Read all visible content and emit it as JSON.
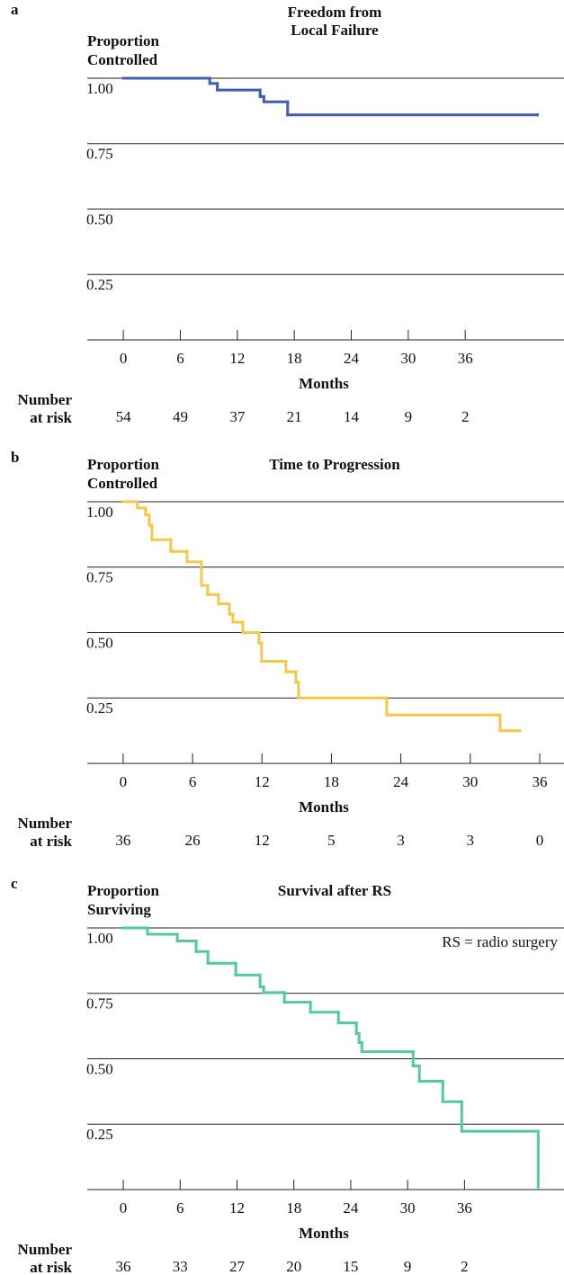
{
  "chart_data": [
    {
      "type": "line",
      "step": "post",
      "panel_label": "a",
      "title": [
        "Freedom from",
        "Local Failure"
      ],
      "y_label": [
        "Proportion",
        "Controlled"
      ],
      "x_label": "Months",
      "x": [
        0,
        9.1,
        9.9,
        14.4,
        14.8,
        17.3,
        43.6
      ],
      "series": [
        {
          "color": "#3f5fae",
          "values": [
            1.0,
            0.98,
            0.955,
            0.93,
            0.91,
            0.86,
            0.86
          ]
        }
      ],
      "xlim": [
        -3.8,
        46.4
      ],
      "ylim": [
        0,
        1.0
      ],
      "xticks": [
        0,
        6,
        12,
        18,
        24,
        30,
        36
      ],
      "yticks": [
        {
          "value": 0.25,
          "label": "0.25"
        },
        {
          "value": 0.5,
          "label": "0.50"
        },
        {
          "value": 0.75,
          "label": "0.75"
        },
        {
          "value": 1.0,
          "label": "1.00"
        }
      ],
      "grid": true,
      "at_risk_label": [
        "Number",
        "at risk"
      ],
      "at_risk": [
        54,
        49,
        37,
        21,
        14,
        9,
        2
      ]
    },
    {
      "type": "line",
      "step": "post",
      "panel_label": "b",
      "title": [
        "Time to Progression"
      ],
      "y_label": [
        "Proportion",
        "Controlled"
      ],
      "x_label": "Months",
      "x": [
        0,
        1.24,
        1.94,
        2.26,
        2.49,
        4.12,
        5.52,
        6.77,
        7.31,
        8.24,
        9.18,
        9.49,
        10.34,
        11.74,
        11.97,
        14.07,
        14.93,
        15.16,
        22.78,
        32.58,
        34.29
      ],
      "series": [
        {
          "color": "#f4c84a",
          "values": [
            1.0,
            0.976,
            0.95,
            0.91,
            0.855,
            0.81,
            0.77,
            0.68,
            0.645,
            0.61,
            0.57,
            0.54,
            0.5,
            0.46,
            0.39,
            0.35,
            0.31,
            0.25,
            0.185,
            0.125,
            0.125
          ]
        }
      ],
      "xlim": [
        -3.1,
        38.1
      ],
      "ylim": [
        0,
        1.0
      ],
      "xticks": [
        0,
        6,
        12,
        18,
        24,
        30,
        36
      ],
      "yticks": [
        {
          "value": 0.25,
          "label": "0.25"
        },
        {
          "value": 0.5,
          "label": "0.50"
        },
        {
          "value": 0.75,
          "label": "0.75"
        },
        {
          "value": 1.0,
          "label": "1.00"
        }
      ],
      "grid": true,
      "at_risk_label": [
        "Number",
        "at risk"
      ],
      "at_risk": [
        36,
        26,
        12,
        5,
        3,
        3,
        0
      ]
    },
    {
      "type": "line",
      "step": "post",
      "panel_label": "c",
      "title": [
        "Survival after RS"
      ],
      "y_label": [
        "Proportion",
        "Surviving"
      ],
      "x_label": "Months",
      "annotation": "RS = radio surgery",
      "x": [
        0,
        2.56,
        5.7,
        7.69,
        8.93,
        11.87,
        14.43,
        14.81,
        17.0,
        19.75,
        22.7,
        24.6,
        24.88,
        25.17,
        30.58,
        31.24,
        33.71,
        35.71,
        43.78
      ],
      "series": [
        {
          "color": "#55c99b",
          "values": [
            1.0,
            0.976,
            0.95,
            0.91,
            0.865,
            0.82,
            0.775,
            0.753,
            0.716,
            0.678,
            0.637,
            0.596,
            0.562,
            0.527,
            0.473,
            0.414,
            0.336,
            0.223,
            0.01
          ]
        }
      ],
      "xlim": [
        -3.8,
        46.5
      ],
      "ylim": [
        0,
        1.0
      ],
      "xticks": [
        0,
        6,
        12,
        18,
        24,
        30,
        36
      ],
      "yticks": [
        {
          "value": 0.25,
          "label": "0.25"
        },
        {
          "value": 0.5,
          "label": "0.50"
        },
        {
          "value": 0.75,
          "label": "0.75"
        },
        {
          "value": 1.0,
          "label": "1.00"
        }
      ],
      "grid": true,
      "at_risk_label": [
        "Number",
        "at risk"
      ],
      "at_risk": [
        36,
        33,
        27,
        20,
        15,
        9,
        2
      ]
    }
  ]
}
